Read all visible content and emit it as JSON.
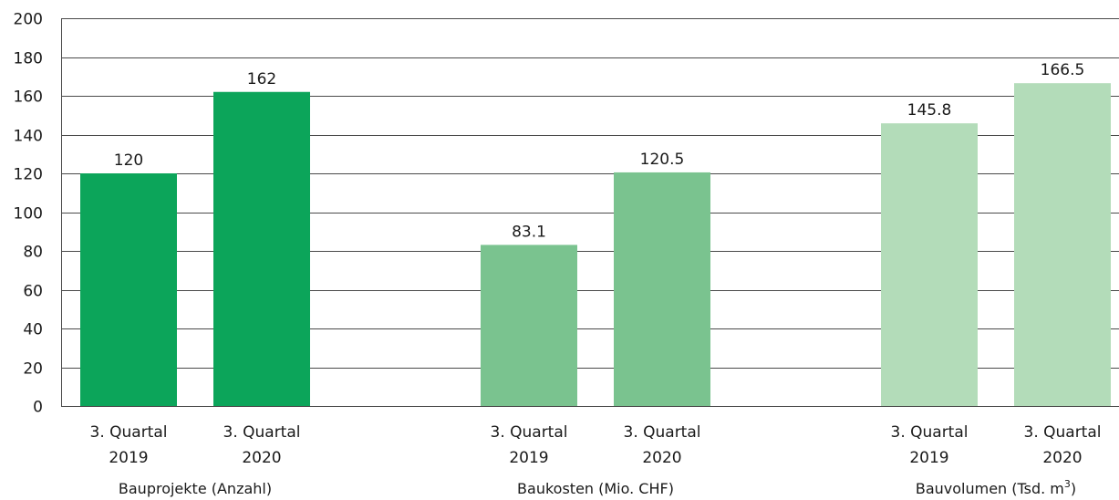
{
  "chart_data": {
    "type": "bar",
    "ylim": [
      0,
      200
    ],
    "yticks": [
      0,
      20,
      40,
      60,
      80,
      100,
      120,
      140,
      160,
      180,
      200
    ],
    "grid": true,
    "groups": [
      {
        "label": "Bauprojekte (Anzahl)",
        "color": "#0ca55a",
        "bars": [
          {
            "category_line1": "3. Quartal",
            "category_line2": "2019",
            "value": 120,
            "value_label": "120"
          },
          {
            "category_line1": "3. Quartal",
            "category_line2": "2020",
            "value": 162,
            "value_label": "162"
          }
        ]
      },
      {
        "label": "Baukosten (Mio. CHF)",
        "color": "#7ac38f",
        "bars": [
          {
            "category_line1": "3. Quartal",
            "category_line2": "2019",
            "value": 83.1,
            "value_label": "83.1"
          },
          {
            "category_line1": "3. Quartal",
            "category_line2": "2020",
            "value": 120.5,
            "value_label": "120.5"
          }
        ]
      },
      {
        "label": "Bauvolumen (Tsd. m",
        "label_superscript": "3",
        "label_suffix": ")",
        "color": "#b3dcb9",
        "bars": [
          {
            "category_line1": "3. Quartal",
            "category_line2": "2019",
            "value": 145.8,
            "value_label": "145.8"
          },
          {
            "category_line1": "3. Quartal",
            "category_line2": "2020",
            "value": 166.5,
            "value_label": "166.5"
          }
        ]
      }
    ]
  }
}
